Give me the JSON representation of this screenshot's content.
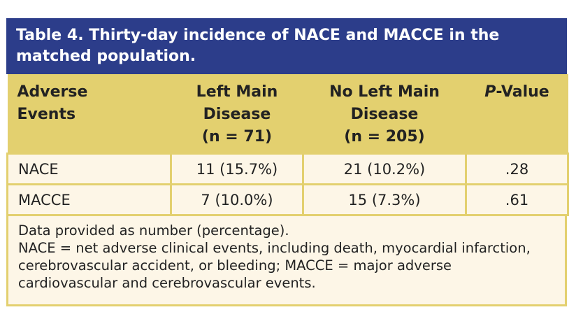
{
  "title": "Table 4. Thirty-day incidence of NACE and MACCE in the matched population.",
  "headers": {
    "col1": [
      "Adverse",
      "Events"
    ],
    "col2": [
      "Left Main",
      "Disease",
      "(n = 71)"
    ],
    "col3": [
      "No Left Main",
      "Disease",
      "(n = 205)"
    ],
    "col4_italic": "P",
    "col4_rest": "-Value"
  },
  "rows": [
    {
      "event": "NACE",
      "left_main": "11 (15.7%)",
      "no_left_main": "21 (10.2%)",
      "p": ".28"
    },
    {
      "event": "MACCE",
      "left_main": "7 (10.0%)",
      "no_left_main": "15 (7.3%)",
      "p": ".61"
    }
  ],
  "footnotes": [
    "Data provided as number (percentage).",
    "NACE = net adverse clinical events, including death, myocardial infarction, cerebrovascular accident, or bleeding; MACCE = major adverse cardiovascular and cerebrovascular events."
  ],
  "colors": {
    "title_bg": "#2c3d8a",
    "header_bg": "#e3d06f",
    "body_bg": "#fdf6e7"
  }
}
